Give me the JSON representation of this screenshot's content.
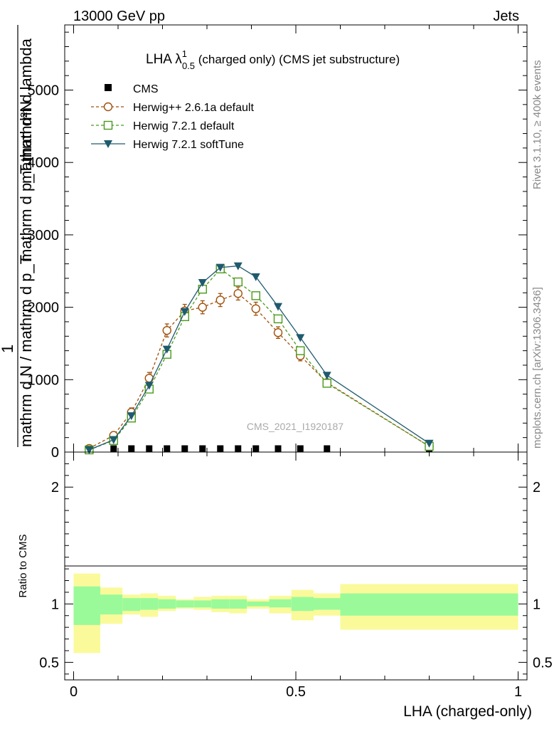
{
  "header": {
    "left": "13000 GeV pp",
    "right": "Jets"
  },
  "side_labels": {
    "rivet": "Rivet 3.1.10, ≥ 400k events",
    "mcplots": "mcplots.cern.ch [arXiv:1306.3436]"
  },
  "watermark": "CMS_2021_I1920187",
  "colors": {
    "cms": "#000000",
    "herwigpp": "#a0500a",
    "herwig721": "#4a9a1a",
    "softtune": "#1f5a6e",
    "band_inner": "#9afa9a",
    "band_outer": "#fafa9a"
  },
  "chart_data": [
    {
      "name": "main",
      "type": "line",
      "title_main": "LHA λ",
      "title_sup": "1",
      "title_sub": "0.5",
      "title_rest": " (charged only) (CMS jet substructure)",
      "ylabel_top": "mathrm d²N",
      "ylabel_top2": "mathrm d p_T mathrm d lambda",
      "ylabel_mid": "1",
      "ylabel_bot": "mathrm d N / mathrm d p_T",
      "ylim": [
        0,
        5900
      ],
      "xlim": [
        -0.02,
        1.02
      ],
      "yticks": [
        0,
        1000,
        2000,
        3000,
        4000,
        5000
      ],
      "ytick_labels": [
        "0",
        "1000",
        "2000",
        "3000",
        "4000",
        "5000"
      ],
      "legend": [
        "CMS",
        "Herwig++ 2.6.1a default",
        "Herwig 7.2.1 default",
        "Herwig 7.2.1 softTune"
      ],
      "series": [
        {
          "name": "CMS",
          "marker": "square",
          "x": [
            0.035,
            0.09,
            0.13,
            0.17,
            0.21,
            0.25,
            0.29,
            0.33,
            0.37,
            0.41,
            0.46,
            0.51,
            0.57,
            0.8
          ],
          "values": [
            5,
            5,
            5,
            5,
            5,
            5,
            5,
            5,
            5,
            5,
            5,
            5,
            5,
            5
          ]
        },
        {
          "name": "Herwig++ 2.6.1a default",
          "marker": "circle",
          "x": [
            0.035,
            0.09,
            0.13,
            0.17,
            0.21,
            0.25,
            0.29,
            0.33,
            0.37,
            0.41,
            0.46,
            0.51,
            0.57,
            0.8
          ],
          "values": [
            50,
            230,
            550,
            1020,
            1680,
            1950,
            2000,
            2100,
            2190,
            1980,
            1650,
            1330,
            960,
            80
          ],
          "errors": [
            20,
            50,
            60,
            80,
            90,
            90,
            90,
            90,
            90,
            90,
            80,
            70,
            50,
            20
          ]
        },
        {
          "name": "Herwig 7.2.1 default",
          "marker": "square-open",
          "x": [
            0.035,
            0.09,
            0.13,
            0.17,
            0.21,
            0.25,
            0.29,
            0.33,
            0.37,
            0.41,
            0.46,
            0.51,
            0.57,
            0.8
          ],
          "values": [
            30,
            160,
            470,
            870,
            1350,
            1870,
            2250,
            2530,
            2350,
            2160,
            1840,
            1400,
            950,
            80
          ]
        },
        {
          "name": "Herwig 7.2.1 softTune",
          "marker": "triangle-down",
          "x": [
            0.035,
            0.09,
            0.13,
            0.17,
            0.21,
            0.25,
            0.29,
            0.33,
            0.37,
            0.41,
            0.46,
            0.51,
            0.57,
            0.8
          ],
          "values": [
            30,
            170,
            500,
            920,
            1420,
            1940,
            2340,
            2550,
            2570,
            2420,
            2010,
            1580,
            1060,
            120
          ]
        }
      ]
    },
    {
      "name": "ratio",
      "type": "area",
      "ylabel": "Ratio to CMS",
      "xlabel": "LHA (charged-only)",
      "xlim": [
        -0.02,
        1.02
      ],
      "ylim": [
        0.35,
        2.3
      ],
      "yticks": [
        0.5,
        1,
        2
      ],
      "ytick_labels": [
        "0.5",
        "1",
        "2"
      ],
      "xticks": [
        0,
        0.5,
        1
      ],
      "xtick_labels": [
        "0",
        "0.5",
        "1"
      ],
      "bins": [
        {
          "lo": 0.0,
          "hi": 0.06,
          "inner": [
            0.82,
            1.15
          ],
          "outer": [
            0.58,
            1.26
          ]
        },
        {
          "lo": 0.06,
          "hi": 0.11,
          "inner": [
            0.91,
            1.08
          ],
          "outer": [
            0.83,
            1.14
          ]
        },
        {
          "lo": 0.11,
          "hi": 0.15,
          "inner": [
            0.94,
            1.05
          ],
          "outer": [
            0.91,
            1.08
          ]
        },
        {
          "lo": 0.15,
          "hi": 0.19,
          "inner": [
            0.95,
            1.05
          ],
          "outer": [
            0.89,
            1.09
          ]
        },
        {
          "lo": 0.19,
          "hi": 0.23,
          "inner": [
            0.96,
            1.04
          ],
          "outer": [
            0.94,
            1.07
          ]
        },
        {
          "lo": 0.23,
          "hi": 0.27,
          "inner": [
            0.97,
            1.03
          ],
          "outer": [
            0.96,
            1.04
          ]
        },
        {
          "lo": 0.27,
          "hi": 0.31,
          "inner": [
            0.97,
            1.03
          ],
          "outer": [
            0.95,
            1.06
          ]
        },
        {
          "lo": 0.31,
          "hi": 0.35,
          "inner": [
            0.96,
            1.04
          ],
          "outer": [
            0.93,
            1.07
          ]
        },
        {
          "lo": 0.35,
          "hi": 0.39,
          "inner": [
            0.96,
            1.04
          ],
          "outer": [
            0.92,
            1.07
          ]
        },
        {
          "lo": 0.39,
          "hi": 0.44,
          "inner": [
            0.98,
            1.02
          ],
          "outer": [
            0.96,
            1.04
          ]
        },
        {
          "lo": 0.44,
          "hi": 0.49,
          "inner": [
            0.97,
            1.04
          ],
          "outer": [
            0.92,
            1.07
          ]
        },
        {
          "lo": 0.49,
          "hi": 0.54,
          "inner": [
            0.94,
            1.06
          ],
          "outer": [
            0.86,
            1.12
          ]
        },
        {
          "lo": 0.54,
          "hi": 0.6,
          "inner": [
            0.95,
            1.05
          ],
          "outer": [
            0.9,
            1.09
          ]
        },
        {
          "lo": 0.6,
          "hi": 1.0,
          "inner": [
            0.9,
            1.09
          ],
          "outer": [
            0.78,
            1.17
          ]
        }
      ]
    }
  ]
}
